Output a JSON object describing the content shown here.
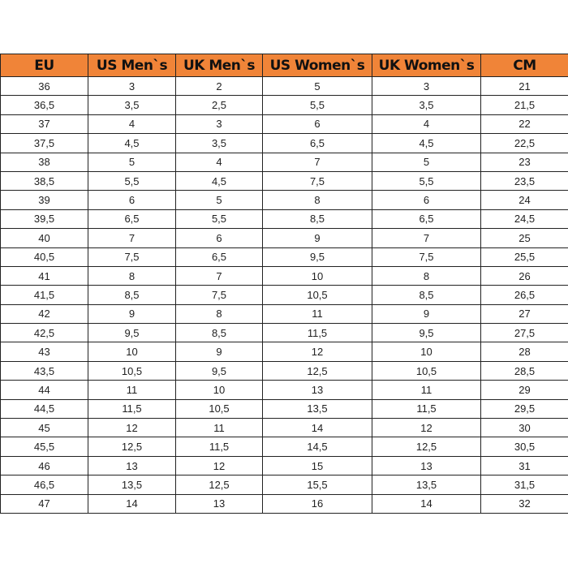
{
  "colors": {
    "header": "#F08438",
    "border": "#222222"
  },
  "headers": [
    "EU",
    "US Men`s",
    "UK Men`s",
    "US Women`s",
    "UK Women`s",
    "CM"
  ],
  "rows": [
    [
      "36",
      "3",
      "2",
      "5",
      "3",
      "21"
    ],
    [
      "36,5",
      "3,5",
      "2,5",
      "5,5",
      "3,5",
      "21,5"
    ],
    [
      "37",
      "4",
      "3",
      "6",
      "4",
      "22"
    ],
    [
      "37,5",
      "4,5",
      "3,5",
      "6,5",
      "4,5",
      "22,5"
    ],
    [
      "38",
      "5",
      "4",
      "7",
      "5",
      "23"
    ],
    [
      "38,5",
      "5,5",
      "4,5",
      "7,5",
      "5,5",
      "23,5"
    ],
    [
      "39",
      "6",
      "5",
      "8",
      "6",
      "24"
    ],
    [
      "39,5",
      "6,5",
      "5,5",
      "8,5",
      "6,5",
      "24,5"
    ],
    [
      "40",
      "7",
      "6",
      "9",
      "7",
      "25"
    ],
    [
      "40,5",
      "7,5",
      "6,5",
      "9,5",
      "7,5",
      "25,5"
    ],
    [
      "41",
      "8",
      "7",
      "10",
      "8",
      "26"
    ],
    [
      "41,5",
      "8,5",
      "7,5",
      "10,5",
      "8,5",
      "26,5"
    ],
    [
      "42",
      "9",
      "8",
      "11",
      "9",
      "27"
    ],
    [
      "42,5",
      "9,5",
      "8,5",
      "11,5",
      "9,5",
      "27,5"
    ],
    [
      "43",
      "10",
      "9",
      "12",
      "10",
      "28"
    ],
    [
      "43,5",
      "10,5",
      "9,5",
      "12,5",
      "10,5",
      "28,5"
    ],
    [
      "44",
      "11",
      "10",
      "13",
      "11",
      "29"
    ],
    [
      "44,5",
      "11,5",
      "10,5",
      "13,5",
      "11,5",
      "29,5"
    ],
    [
      "45",
      "12",
      "11",
      "14",
      "12",
      "30"
    ],
    [
      "45,5",
      "12,5",
      "11,5",
      "14,5",
      "12,5",
      "30,5"
    ],
    [
      "46",
      "13",
      "12",
      "15",
      "13",
      "31"
    ],
    [
      "46,5",
      "13,5",
      "12,5",
      "15,5",
      "13,5",
      "31,5"
    ],
    [
      "47",
      "14",
      "13",
      "16",
      "14",
      "32"
    ]
  ]
}
